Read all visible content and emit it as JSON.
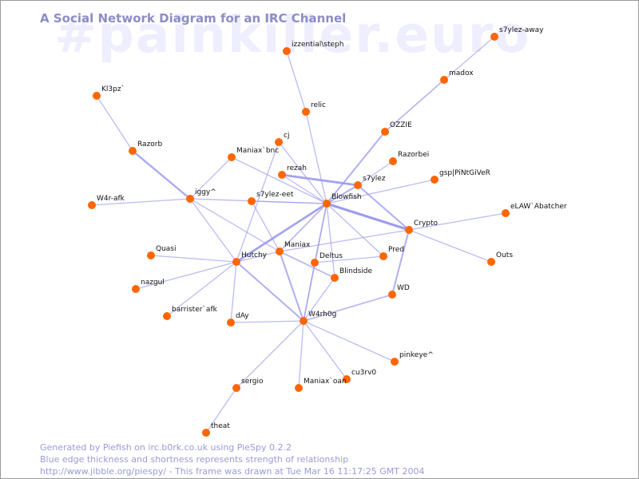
{
  "watermark": "#painkiller.euro",
  "title": "A Social Network Diagram for an IRC Channel",
  "footer": {
    "line1": "Generated by Piefish on irc.b0rk.co.uk using PieSpy 0.2.2",
    "line2": "Blue edge thickness and shortness represents strength of relationship",
    "line3": "http://www.jibble.org/piespy/ - This frame was drawn at Tue Mar 16 11:17:25 GMT 2004"
  },
  "colors": {
    "node": "#ff6600",
    "edge": "#9999ee",
    "title": "#8c8cc6",
    "watermark": "#eeeeff",
    "footer": "#9a9ad8"
  },
  "nodes": [
    {
      "id": "s7ylez-away",
      "label": "s7ylez-away"
    },
    {
      "id": "madox",
      "label": "madox"
    },
    {
      "id": "izzential",
      "label": "izzential\\steph"
    },
    {
      "id": "relic",
      "label": "relic"
    },
    {
      "id": "Kl3pz",
      "label": "Kl3pz`"
    },
    {
      "id": "OZZIE",
      "label": "OZZIE"
    },
    {
      "id": "Razorb",
      "label": "Razorb"
    },
    {
      "id": "cj",
      "label": "cj"
    },
    {
      "id": "Maniaxbnc",
      "label": "Maniax`bnc"
    },
    {
      "id": "Razorbei",
      "label": "Razorbei"
    },
    {
      "id": "rezah",
      "label": "rezah"
    },
    {
      "id": "s7ylez",
      "label": "s7ylez"
    },
    {
      "id": "gsp",
      "label": "gsp|PiNtGiVeR"
    },
    {
      "id": "W4rafk",
      "label": "W4r-afk"
    },
    {
      "id": "iggy",
      "label": "iggy^"
    },
    {
      "id": "s7yleeet",
      "label": "s7ylez-eet"
    },
    {
      "id": "Blowfish",
      "label": "Blowfish"
    },
    {
      "id": "eLAW",
      "label": "eLAW`Abatcher"
    },
    {
      "id": "Crypto",
      "label": "Crypto"
    },
    {
      "id": "Quasi",
      "label": "Quasi"
    },
    {
      "id": "Hutchy",
      "label": "Hutchy"
    },
    {
      "id": "Maniax",
      "label": "Maniax"
    },
    {
      "id": "Deltus",
      "label": "Deltus"
    },
    {
      "id": "Pred",
      "label": "Pred"
    },
    {
      "id": "Outs",
      "label": "Outs"
    },
    {
      "id": "Blindside",
      "label": "Blindside"
    },
    {
      "id": "nazgul",
      "label": "nazgul"
    },
    {
      "id": "WD",
      "label": "WD"
    },
    {
      "id": "barrister",
      "label": "barrister`afk"
    },
    {
      "id": "dAy",
      "label": "dAy"
    },
    {
      "id": "W4rh0g",
      "label": "W4rh0g"
    },
    {
      "id": "pinkeye",
      "label": "pinkeye^"
    },
    {
      "id": "cu3rv0",
      "label": "cu3rv0"
    },
    {
      "id": "sergio",
      "label": "sergio"
    },
    {
      "id": "Maniaxoan",
      "label": "Maniax`oan"
    },
    {
      "id": "theat",
      "label": "theat"
    }
  ],
  "edges": [
    {
      "a": "s7ylez-away",
      "b": "madox",
      "weight": 1
    },
    {
      "a": "madox",
      "b": "OZZIE",
      "weight": 1.5
    },
    {
      "a": "OZZIE",
      "b": "Blowfish",
      "weight": 2
    },
    {
      "a": "izzential",
      "b": "relic",
      "weight": 1
    },
    {
      "a": "relic",
      "b": "Blowfish",
      "weight": 1
    },
    {
      "a": "Kl3pz",
      "b": "Razorb",
      "weight": 1
    },
    {
      "a": "Razorb",
      "b": "iggy",
      "weight": 2.5
    },
    {
      "a": "W4rafk",
      "b": "iggy",
      "weight": 1
    },
    {
      "a": "iggy",
      "b": "Maniaxbnc",
      "weight": 1
    },
    {
      "a": "iggy",
      "b": "Blowfish",
      "weight": 1
    },
    {
      "a": "iggy",
      "b": "Hutchy",
      "weight": 1
    },
    {
      "a": "iggy",
      "b": "Maniax",
      "weight": 1
    },
    {
      "a": "Maniaxbnc",
      "b": "Blowfish",
      "weight": 1
    },
    {
      "a": "cj",
      "b": "Blowfish",
      "weight": 1
    },
    {
      "a": "cj",
      "b": "Hutchy",
      "weight": 1
    },
    {
      "a": "rezah",
      "b": "s7ylez",
      "weight": 3
    },
    {
      "a": "rezah",
      "b": "Blowfish",
      "weight": 1
    },
    {
      "a": "Razorbei",
      "b": "s7ylez",
      "weight": 1
    },
    {
      "a": "s7ylez",
      "b": "Blowfish",
      "weight": 2
    },
    {
      "a": "s7ylez",
      "b": "Crypto",
      "weight": 2
    },
    {
      "a": "gsp",
      "b": "Blowfish",
      "weight": 1
    },
    {
      "a": "s7yleeet",
      "b": "Blowfish",
      "weight": 1
    },
    {
      "a": "s7yleeet",
      "b": "Maniax",
      "weight": 1
    },
    {
      "a": "Blowfish",
      "b": "Crypto",
      "weight": 3.5
    },
    {
      "a": "Blowfish",
      "b": "Hutchy",
      "weight": 3
    },
    {
      "a": "Blowfish",
      "b": "Maniax",
      "weight": 1.5
    },
    {
      "a": "Blowfish",
      "b": "Deltus",
      "weight": 1
    },
    {
      "a": "Blowfish",
      "b": "Pred",
      "weight": 1
    },
    {
      "a": "Blowfish",
      "b": "Blindside",
      "weight": 1
    },
    {
      "a": "Blowfish",
      "b": "W4rh0g",
      "weight": 1.5
    },
    {
      "a": "Crypto",
      "b": "eLAW",
      "weight": 1
    },
    {
      "a": "Crypto",
      "b": "Outs",
      "weight": 1
    },
    {
      "a": "Crypto",
      "b": "WD",
      "weight": 2
    },
    {
      "a": "Crypto",
      "b": "Maniax",
      "weight": 1
    },
    {
      "a": "Quasi",
      "b": "Hutchy",
      "weight": 1
    },
    {
      "a": "nazgul",
      "b": "Hutchy",
      "weight": 1
    },
    {
      "a": "barrister",
      "b": "Hutchy",
      "weight": 1
    },
    {
      "a": "Hutchy",
      "b": "dAy",
      "weight": 1
    },
    {
      "a": "Hutchy",
      "b": "W4rh0g",
      "weight": 2
    },
    {
      "a": "Hutchy",
      "b": "Maniax",
      "weight": 1
    },
    {
      "a": "Maniax",
      "b": "W4rh0g",
      "weight": 2
    },
    {
      "a": "Maniax",
      "b": "Blindside",
      "weight": 1.5
    },
    {
      "a": "Deltus",
      "b": "Pred",
      "weight": 1
    },
    {
      "a": "Deltus",
      "b": "W4rh0g",
      "weight": 1
    },
    {
      "a": "WD",
      "b": "W4rh0g",
      "weight": 1.5
    },
    {
      "a": "Blindside",
      "b": "W4rh0g",
      "weight": 1
    },
    {
      "a": "dAy",
      "b": "W4rh0g",
      "weight": 1
    },
    {
      "a": "W4rh0g",
      "b": "pinkeye",
      "weight": 1
    },
    {
      "a": "W4rh0g",
      "b": "cu3rv0",
      "weight": 1
    },
    {
      "a": "W4rh0g",
      "b": "Maniaxoan",
      "weight": 1
    },
    {
      "a": "W4rh0g",
      "b": "sergio",
      "weight": 1
    },
    {
      "a": "sergio",
      "b": "theat",
      "weight": 1
    }
  ]
}
